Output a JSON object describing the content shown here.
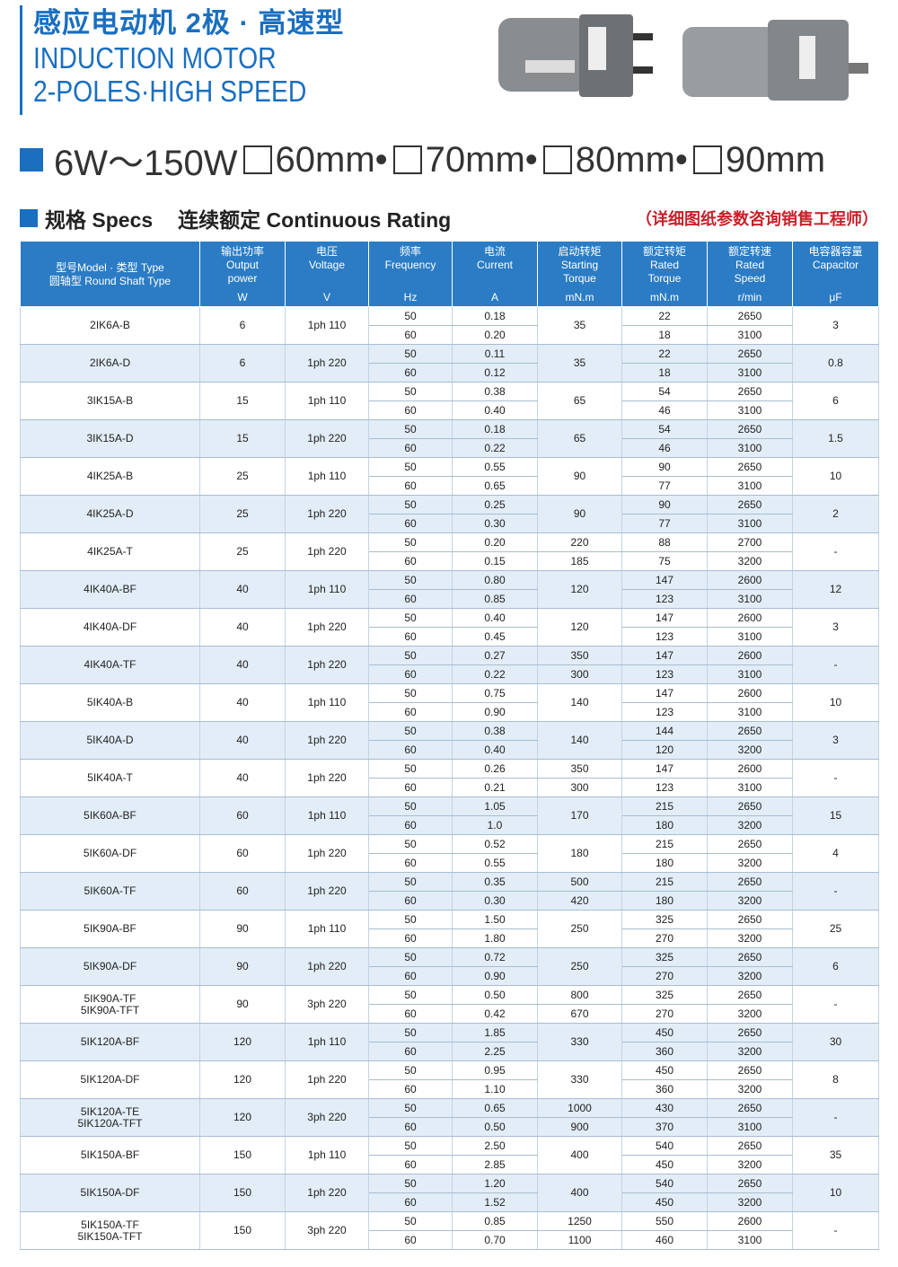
{
  "header": {
    "title_cn": "感应电动机 2极 · 高速型",
    "title_en_1": "INDUCTION MOTOR",
    "title_en_2": "2-POLES·HIGH SPEED",
    "power_range": "6W～150W",
    "frames": [
      "60mm•",
      "70mm•",
      "80mm•",
      "90mm"
    ]
  },
  "section": {
    "specs": "规格 Specs",
    "rating": "连续额定 Continuous Rating",
    "note": "（详细图纸参数咨询销售工程师）"
  },
  "table": {
    "columns": [
      {
        "label": [
          "型号Model · 类型 Type",
          "圆轴型 Round Shaft Type"
        ]
      },
      {
        "label": [
          "输出功率",
          "Output",
          "power"
        ],
        "unit": "W"
      },
      {
        "label": [
          "电压",
          "Voltage"
        ],
        "unit": "V"
      },
      {
        "label": [
          "频率",
          "Frequency"
        ],
        "unit": "Hz"
      },
      {
        "label": [
          "电流",
          "Current"
        ],
        "unit": "A"
      },
      {
        "label": [
          "启动转矩",
          "Starting",
          "Torque"
        ],
        "unit": "mN.m"
      },
      {
        "label": [
          "额定转矩",
          "Rated",
          "Torque"
        ],
        "unit": "mN.m"
      },
      {
        "label": [
          "额定转速",
          "Rated",
          "Speed"
        ],
        "unit": "r/min"
      },
      {
        "label": [
          "电容器容量",
          "Capacitor"
        ],
        "unit": "μF"
      }
    ],
    "rows": [
      {
        "model": [
          "2IK6A-B"
        ],
        "power": "6",
        "voltage": "1ph 110",
        "starting_torque": "35",
        "capacitor": "3",
        "sub": [
          {
            "frequency": "50",
            "current": "0.18",
            "rated_torque": "22",
            "rated_speed": "2650"
          },
          {
            "frequency": "60",
            "current": "0.20",
            "rated_torque": "18",
            "rated_speed": "3100"
          }
        ]
      },
      {
        "model": [
          "2IK6A-D"
        ],
        "power": "6",
        "voltage": "1ph 220",
        "starting_torque": "35",
        "capacitor": "0.8",
        "sub": [
          {
            "frequency": "50",
            "current": "0.11",
            "rated_torque": "22",
            "rated_speed": "2650"
          },
          {
            "frequency": "60",
            "current": "0.12",
            "rated_torque": "18",
            "rated_speed": "3100"
          }
        ]
      },
      {
        "model": [
          "3IK15A-B"
        ],
        "power": "15",
        "voltage": "1ph 110",
        "starting_torque": "65",
        "capacitor": "6",
        "sub": [
          {
            "frequency": "50",
            "current": "0.38",
            "rated_torque": "54",
            "rated_speed": "2650"
          },
          {
            "frequency": "60",
            "current": "0.40",
            "rated_torque": "46",
            "rated_speed": "3100"
          }
        ]
      },
      {
        "model": [
          "3IK15A-D"
        ],
        "power": "15",
        "voltage": "1ph 220",
        "starting_torque": "65",
        "capacitor": "1.5",
        "sub": [
          {
            "frequency": "50",
            "current": "0.18",
            "rated_torque": "54",
            "rated_speed": "2650"
          },
          {
            "frequency": "60",
            "current": "0.22",
            "rated_torque": "46",
            "rated_speed": "3100"
          }
        ]
      },
      {
        "model": [
          "4IK25A-B"
        ],
        "power": "25",
        "voltage": "1ph 110",
        "starting_torque": "90",
        "capacitor": "10",
        "sub": [
          {
            "frequency": "50",
            "current": "0.55",
            "rated_torque": "90",
            "rated_speed": "2650"
          },
          {
            "frequency": "60",
            "current": "0.65",
            "rated_torque": "77",
            "rated_speed": "3100"
          }
        ]
      },
      {
        "model": [
          "4IK25A-D"
        ],
        "power": "25",
        "voltage": "1ph 220",
        "starting_torque": "90",
        "capacitor": "2",
        "sub": [
          {
            "frequency": "50",
            "current": "0.25",
            "rated_torque": "90",
            "rated_speed": "2650"
          },
          {
            "frequency": "60",
            "current": "0.30",
            "rated_torque": "77",
            "rated_speed": "3100"
          }
        ]
      },
      {
        "model": [
          "4IK25A-T"
        ],
        "power": "25",
        "voltage": "1ph 220",
        "capacitor": "-",
        "sub": [
          {
            "frequency": "50",
            "current": "0.20",
            "starting_torque": "220",
            "rated_torque": "88",
            "rated_speed": "2700"
          },
          {
            "frequency": "60",
            "current": "0.15",
            "starting_torque": "185",
            "rated_torque": "75",
            "rated_speed": "3200"
          }
        ]
      },
      {
        "model": [
          "4IK40A-BF"
        ],
        "power": "40",
        "voltage": "1ph 110",
        "starting_torque": "120",
        "capacitor": "12",
        "sub": [
          {
            "frequency": "50",
            "current": "0.80",
            "rated_torque": "147",
            "rated_speed": "2600"
          },
          {
            "frequency": "60",
            "current": "0.85",
            "rated_torque": "123",
            "rated_speed": "3100"
          }
        ]
      },
      {
        "model": [
          "4IK40A-DF"
        ],
        "power": "40",
        "voltage": "1ph 220",
        "starting_torque": "120",
        "capacitor": "3",
        "sub": [
          {
            "frequency": "50",
            "current": "0.40",
            "rated_torque": "147",
            "rated_speed": "2600"
          },
          {
            "frequency": "60",
            "current": "0.45",
            "rated_torque": "123",
            "rated_speed": "3100"
          }
        ]
      },
      {
        "model": [
          "4IK40A-TF"
        ],
        "power": "40",
        "voltage": "1ph 220",
        "capacitor": "-",
        "sub": [
          {
            "frequency": "50",
            "current": "0.27",
            "starting_torque": "350",
            "rated_torque": "147",
            "rated_speed": "2600"
          },
          {
            "frequency": "60",
            "current": "0.22",
            "starting_torque": "300",
            "rated_torque": "123",
            "rated_speed": "3100"
          }
        ]
      },
      {
        "model": [
          "5IK40A-B"
        ],
        "power": "40",
        "voltage": "1ph 110",
        "starting_torque": "140",
        "capacitor": "10",
        "sub": [
          {
            "frequency": "50",
            "current": "0.75",
            "rated_torque": "147",
            "rated_speed": "2600"
          },
          {
            "frequency": "60",
            "current": "0.90",
            "rated_torque": "123",
            "rated_speed": "3100"
          }
        ]
      },
      {
        "model": [
          "5IK40A-D"
        ],
        "power": "40",
        "voltage": "1ph 220",
        "starting_torque": "140",
        "capacitor": "3",
        "sub": [
          {
            "frequency": "50",
            "current": "0.38",
            "rated_torque": "144",
            "rated_speed": "2650"
          },
          {
            "frequency": "60",
            "current": "0.40",
            "rated_torque": "120",
            "rated_speed": "3200"
          }
        ]
      },
      {
        "model": [
          "5IK40A-T"
        ],
        "power": "40",
        "voltage": "1ph 220",
        "capacitor": "-",
        "sub": [
          {
            "frequency": "50",
            "current": "0.26",
            "starting_torque": "350",
            "rated_torque": "147",
            "rated_speed": "2600"
          },
          {
            "frequency": "60",
            "current": "0.21",
            "starting_torque": "300",
            "rated_torque": "123",
            "rated_speed": "3100"
          }
        ]
      },
      {
        "model": [
          "5IK60A-BF"
        ],
        "power": "60",
        "voltage": "1ph 110",
        "starting_torque": "170",
        "capacitor": "15",
        "sub": [
          {
            "frequency": "50",
            "current": "1.05",
            "rated_torque": "215",
            "rated_speed": "2650"
          },
          {
            "frequency": "60",
            "current": "1.0",
            "rated_torque": "180",
            "rated_speed": "3200"
          }
        ]
      },
      {
        "model": [
          "5IK60A-DF"
        ],
        "power": "60",
        "voltage": "1ph 220",
        "starting_torque": "180",
        "capacitor": "4",
        "sub": [
          {
            "frequency": "50",
            "current": "0.52",
            "rated_torque": "215",
            "rated_speed": "2650"
          },
          {
            "frequency": "60",
            "current": "0.55",
            "rated_torque": "180",
            "rated_speed": "3200"
          }
        ]
      },
      {
        "model": [
          "5IK60A-TF"
        ],
        "power": "60",
        "voltage": "1ph 220",
        "capacitor": "-",
        "sub": [
          {
            "frequency": "50",
            "current": "0.35",
            "starting_torque": "500",
            "rated_torque": "215",
            "rated_speed": "2650"
          },
          {
            "frequency": "60",
            "current": "0.30",
            "starting_torque": "420",
            "rated_torque": "180",
            "rated_speed": "3200"
          }
        ]
      },
      {
        "model": [
          "5IK90A-BF"
        ],
        "power": "90",
        "voltage": "1ph 110",
        "starting_torque": "250",
        "capacitor": "25",
        "sub": [
          {
            "frequency": "50",
            "current": "1.50",
            "rated_torque": "325",
            "rated_speed": "2650"
          },
          {
            "frequency": "60",
            "current": "1.80",
            "rated_torque": "270",
            "rated_speed": "3200"
          }
        ]
      },
      {
        "model": [
          "5IK90A-DF"
        ],
        "power": "90",
        "voltage": "1ph 220",
        "starting_torque": "250",
        "capacitor": "6",
        "sub": [
          {
            "frequency": "50",
            "current": "0.72",
            "rated_torque": "325",
            "rated_speed": "2650"
          },
          {
            "frequency": "60",
            "current": "0.90",
            "rated_torque": "270",
            "rated_speed": "3200"
          }
        ]
      },
      {
        "model": [
          "5IK90A-TF",
          "5IK90A-TFT"
        ],
        "power": "90",
        "voltage": "3ph 220",
        "capacitor": "-",
        "sub": [
          {
            "frequency": "50",
            "current": "0.50",
            "starting_torque": "800",
            "rated_torque": "325",
            "rated_speed": "2650"
          },
          {
            "frequency": "60",
            "current": "0.42",
            "starting_torque": "670",
            "rated_torque": "270",
            "rated_speed": "3200"
          }
        ]
      },
      {
        "model": [
          "5IK120A-BF"
        ],
        "power": "120",
        "voltage": "1ph 110",
        "starting_torque": "330",
        "capacitor": "30",
        "sub": [
          {
            "frequency": "50",
            "current": "1.85",
            "rated_torque": "450",
            "rated_speed": "2650"
          },
          {
            "frequency": "60",
            "current": "2.25",
            "rated_torque": "360",
            "rated_speed": "3200"
          }
        ]
      },
      {
        "model": [
          "5IK120A-DF"
        ],
        "power": "120",
        "voltage": "1ph 220",
        "starting_torque": "330",
        "capacitor": "8",
        "sub": [
          {
            "frequency": "50",
            "current": "0.95",
            "rated_torque": "450",
            "rated_speed": "2650"
          },
          {
            "frequency": "60",
            "current": "1.10",
            "rated_torque": "360",
            "rated_speed": "3200"
          }
        ]
      },
      {
        "model": [
          "5IK120A-TE",
          "5IK120A-TFT"
        ],
        "power": "120",
        "voltage": "3ph 220",
        "capacitor": "-",
        "sub": [
          {
            "frequency": "50",
            "current": "0.65",
            "starting_torque": "1000",
            "rated_torque": "430",
            "rated_speed": "2650"
          },
          {
            "frequency": "60",
            "current": "0.50",
            "starting_torque": "900",
            "rated_torque": "370",
            "rated_speed": "3100"
          }
        ]
      },
      {
        "model": [
          "5IK150A-BF"
        ],
        "power": "150",
        "voltage": "1ph 110",
        "starting_torque": "400",
        "capacitor": "35",
        "sub": [
          {
            "frequency": "50",
            "current": "2.50",
            "rated_torque": "540",
            "rated_speed": "2650"
          },
          {
            "frequency": "60",
            "current": "2.85",
            "rated_torque": "450",
            "rated_speed": "3200"
          }
        ]
      },
      {
        "model": [
          "5IK150A-DF"
        ],
        "power": "150",
        "voltage": "1ph 220",
        "starting_torque": "400",
        "capacitor": "10",
        "sub": [
          {
            "frequency": "50",
            "current": "1.20",
            "rated_torque": "540",
            "rated_speed": "2650"
          },
          {
            "frequency": "60",
            "current": "1.52",
            "rated_torque": "450",
            "rated_speed": "3200"
          }
        ]
      },
      {
        "model": [
          "5IK150A-TF",
          "5IK150A-TFT"
        ],
        "power": "150",
        "voltage": "3ph 220",
        "capacitor": "-",
        "sub": [
          {
            "frequency": "50",
            "current": "0.85",
            "starting_torque": "1250",
            "rated_torque": "550",
            "rated_speed": "2600"
          },
          {
            "frequency": "60",
            "current": "0.70",
            "starting_torque": "1100",
            "rated_torque": "460",
            "rated_speed": "3100"
          }
        ]
      }
    ]
  }
}
